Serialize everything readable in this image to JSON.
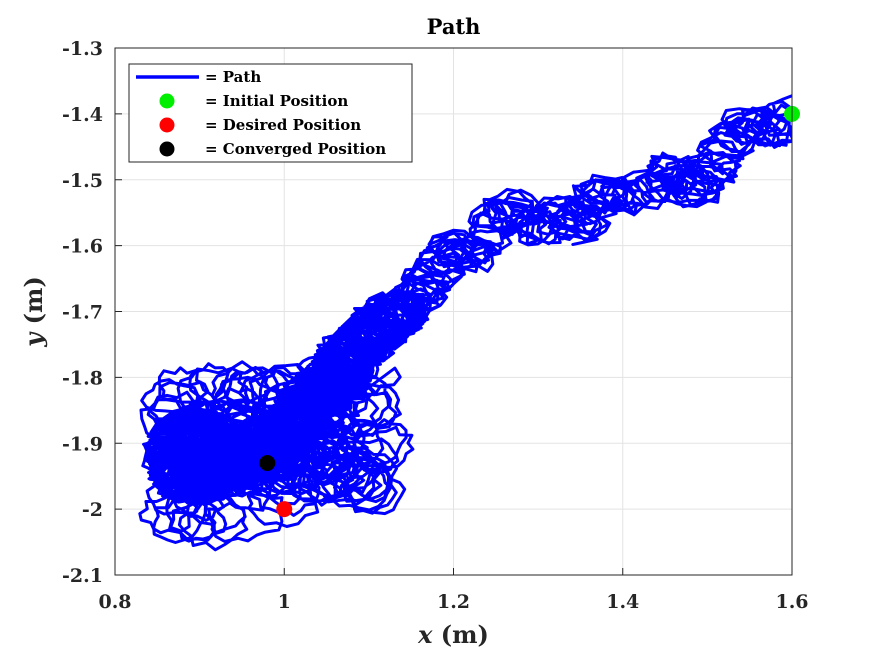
{
  "chart_data": {
    "type": "line",
    "title": "Path",
    "xlabel": "x (m)",
    "ylabel": "y (m)",
    "xlim": [
      0.8,
      1.6
    ],
    "ylim": [
      -2.1,
      -1.3
    ],
    "xticks": [
      0.8,
      1.0,
      1.2,
      1.4,
      1.6
    ],
    "xtick_labels": [
      "0.8",
      "1",
      "1.2",
      "1.4",
      "1.6"
    ],
    "yticks": [
      -1.3,
      -1.4,
      -1.5,
      -1.6,
      -1.7,
      -1.8,
      -1.9,
      -2.0,
      -2.1
    ],
    "ytick_labels": [
      "-1.3",
      "-1.4",
      "-1.5",
      "-1.6",
      "-1.7",
      "-1.8",
      "-1.9",
      "-2",
      "-2.1"
    ],
    "grid": true,
    "legend_position": "top-left",
    "colors": {
      "path": "#0000ff",
      "initial": "#00ee00",
      "desired": "#ff0000",
      "converged": "#000000"
    },
    "series": [
      {
        "name": "Path",
        "style": "loopy trajectory",
        "x": [
          1.6,
          1.575,
          1.55,
          1.52,
          1.5,
          1.48,
          1.46,
          1.44,
          1.4,
          1.37,
          1.35,
          1.33,
          1.3,
          1.27,
          1.25,
          1.22,
          1.2,
          1.18,
          1.16,
          1.14,
          1.12,
          1.1,
          1.08,
          1.06,
          1.04,
          1.02,
          1.0,
          0.98,
          0.96,
          0.94,
          0.92,
          0.9,
          0.88,
          0.87,
          0.88,
          0.9,
          0.92,
          0.95,
          0.98
        ],
        "y": [
          -1.4,
          -1.43,
          -1.41,
          -1.45,
          -1.5,
          -1.52,
          -1.48,
          -1.51,
          -1.53,
          -1.52,
          -1.57,
          -1.55,
          -1.58,
          -1.54,
          -1.56,
          -1.62,
          -1.6,
          -1.64,
          -1.67,
          -1.7,
          -1.71,
          -1.74,
          -1.76,
          -1.8,
          -1.82,
          -1.86,
          -1.88,
          -1.9,
          -1.92,
          -1.94,
          -1.93,
          -1.96,
          -1.95,
          -1.92,
          -1.89,
          -1.88,
          -1.9,
          -1.91,
          -1.93
        ]
      },
      {
        "name": "Initial Position",
        "x": [
          1.6
        ],
        "y": [
          -1.4
        ]
      },
      {
        "name": "Desired Position",
        "x": [
          1.0
        ],
        "y": [
          -2.0
        ]
      },
      {
        "name": "Converged Position",
        "x": [
          0.98
        ],
        "y": [
          -1.93
        ]
      }
    ],
    "legend": {
      "entries": [
        "= Path",
        "= Initial Position",
        "= Desired Position",
        "= Converged Position"
      ]
    }
  }
}
